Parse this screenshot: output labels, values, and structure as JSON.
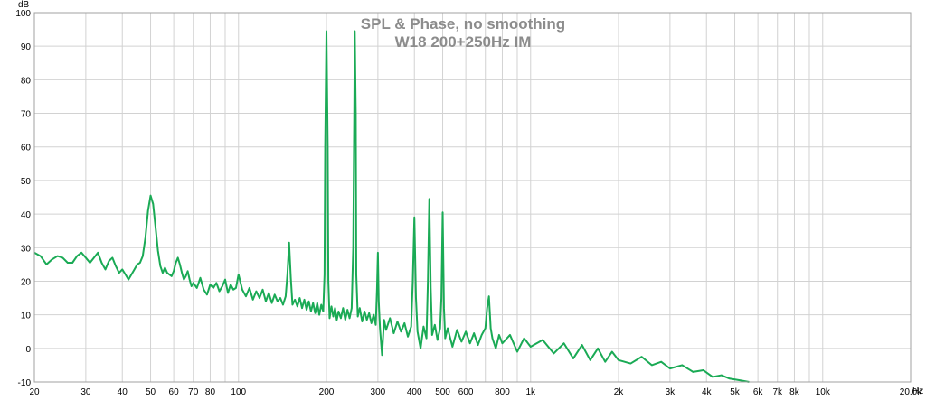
{
  "chart_data": {
    "type": "line",
    "title": "SPL & Phase, no smoothing",
    "subtitle": "W18 200+250Hz IM",
    "ylabel": "dB",
    "xunit": "Hz",
    "xscale": "log",
    "xlim": [
      20,
      20000
    ],
    "ylim": [
      -10,
      100
    ],
    "grid": true,
    "y_ticks": [
      100,
      90,
      80,
      70,
      60,
      50,
      40,
      30,
      20,
      10,
      0,
      -10
    ],
    "x_ticks": [
      {
        "value": 20,
        "label": "20"
      },
      {
        "value": 30,
        "label": "30"
      },
      {
        "value": 40,
        "label": "40"
      },
      {
        "value": 50,
        "label": "50"
      },
      {
        "value": 60,
        "label": "60"
      },
      {
        "value": 70,
        "label": "70"
      },
      {
        "value": 80,
        "label": "80"
      },
      {
        "value": 100,
        "label": "100"
      },
      {
        "value": 200,
        "label": "200"
      },
      {
        "value": 300,
        "label": "300"
      },
      {
        "value": 400,
        "label": "400"
      },
      {
        "value": 500,
        "label": "500"
      },
      {
        "value": 600,
        "label": "600"
      },
      {
        "value": 800,
        "label": "800"
      },
      {
        "value": 1000,
        "label": "1k"
      },
      {
        "value": 2000,
        "label": "2k"
      },
      {
        "value": 3000,
        "label": "3k"
      },
      {
        "value": 4000,
        "label": "4k"
      },
      {
        "value": 5000,
        "label": "5k"
      },
      {
        "value": 6000,
        "label": "6k"
      },
      {
        "value": 7000,
        "label": "7k"
      },
      {
        "value": 8000,
        "label": "8k"
      },
      {
        "value": 10000,
        "label": "10k"
      },
      {
        "value": 20000,
        "label": "20.0k"
      }
    ],
    "series": [
      {
        "color": "#1aaa55",
        "points": [
          [
            20,
            28.5
          ],
          [
            21,
            27.5
          ],
          [
            22,
            25
          ],
          [
            23,
            26.5
          ],
          [
            24,
            27.5
          ],
          [
            25,
            27
          ],
          [
            26,
            25.5
          ],
          [
            27,
            25.5
          ],
          [
            28,
            27.5
          ],
          [
            29,
            28.5
          ],
          [
            30,
            27
          ],
          [
            31,
            25.5
          ],
          [
            32,
            27
          ],
          [
            33,
            28.5
          ],
          [
            34,
            25.5
          ],
          [
            35,
            23.5
          ],
          [
            36,
            26
          ],
          [
            37,
            27
          ],
          [
            38,
            24.5
          ],
          [
            39,
            22.5
          ],
          [
            40,
            23.5
          ],
          [
            41,
            22
          ],
          [
            42,
            20.5
          ],
          [
            43,
            22
          ],
          [
            44,
            23.5
          ],
          [
            45,
            25
          ],
          [
            46,
            25.5
          ],
          [
            47,
            27.5
          ],
          [
            48,
            33
          ],
          [
            49,
            41
          ],
          [
            50,
            45.5
          ],
          [
            51,
            43
          ],
          [
            52,
            36
          ],
          [
            53,
            29
          ],
          [
            54,
            24.5
          ],
          [
            55,
            22.5
          ],
          [
            56,
            24
          ],
          [
            57,
            22.5
          ],
          [
            58,
            22
          ],
          [
            59,
            21.5
          ],
          [
            60,
            23
          ],
          [
            61,
            25.5
          ],
          [
            62,
            27
          ],
          [
            63,
            25
          ],
          [
            64,
            22.5
          ],
          [
            65,
            20.5
          ],
          [
            66,
            21.5
          ],
          [
            67,
            23
          ],
          [
            68,
            20.5
          ],
          [
            69,
            18.5
          ],
          [
            70,
            19.5
          ],
          [
            72,
            18
          ],
          [
            74,
            21
          ],
          [
            76,
            17.5
          ],
          [
            78,
            16
          ],
          [
            80,
            19
          ],
          [
            82,
            18
          ],
          [
            84,
            19.5
          ],
          [
            86,
            17
          ],
          [
            88,
            18.5
          ],
          [
            90,
            20.5
          ],
          [
            92,
            16.5
          ],
          [
            94,
            19
          ],
          [
            96,
            17.5
          ],
          [
            98,
            18
          ],
          [
            100,
            22
          ],
          [
            103,
            17.5
          ],
          [
            106,
            15.5
          ],
          [
            109,
            18
          ],
          [
            112,
            14.5
          ],
          [
            115,
            17
          ],
          [
            118,
            15
          ],
          [
            121,
            17.5
          ],
          [
            124,
            14
          ],
          [
            127,
            16.5
          ],
          [
            130,
            13.5
          ],
          [
            133,
            16
          ],
          [
            136,
            14
          ],
          [
            139,
            15
          ],
          [
            142,
            13
          ],
          [
            145,
            15.5
          ],
          [
            147,
            22
          ],
          [
            149,
            31.5
          ],
          [
            151,
            21
          ],
          [
            153,
            13
          ],
          [
            156,
            14.5
          ],
          [
            159,
            12.5
          ],
          [
            162,
            15
          ],
          [
            165,
            12
          ],
          [
            168,
            14.5
          ],
          [
            171,
            11.5
          ],
          [
            174,
            14
          ],
          [
            177,
            11
          ],
          [
            180,
            13.5
          ],
          [
            183,
            10.5
          ],
          [
            186,
            13.5
          ],
          [
            189,
            10
          ],
          [
            192,
            13
          ],
          [
            195,
            11
          ],
          [
            197,
            22
          ],
          [
            198,
            60
          ],
          [
            200,
            94.5
          ],
          [
            202,
            60
          ],
          [
            203,
            20
          ],
          [
            205,
            9
          ],
          [
            208,
            12.5
          ],
          [
            211,
            9.5
          ],
          [
            214,
            12
          ],
          [
            217,
            8.5
          ],
          [
            220,
            11
          ],
          [
            224,
            9
          ],
          [
            228,
            12
          ],
          [
            232,
            8.5
          ],
          [
            236,
            11.5
          ],
          [
            240,
            9
          ],
          [
            244,
            12
          ],
          [
            247,
            30
          ],
          [
            249,
            70
          ],
          [
            250,
            94.5
          ],
          [
            252,
            70
          ],
          [
            253,
            22
          ],
          [
            256,
            9.5
          ],
          [
            260,
            12
          ],
          [
            265,
            8
          ],
          [
            270,
            11
          ],
          [
            275,
            8.5
          ],
          [
            280,
            10.5
          ],
          [
            285,
            7.5
          ],
          [
            290,
            10
          ],
          [
            295,
            7
          ],
          [
            298,
            18
          ],
          [
            300,
            28.5
          ],
          [
            302,
            14
          ],
          [
            305,
            6
          ],
          [
            310,
            -2
          ],
          [
            315,
            8.5
          ],
          [
            320,
            5.5
          ],
          [
            330,
            9
          ],
          [
            340,
            4.5
          ],
          [
            350,
            8
          ],
          [
            360,
            5
          ],
          [
            370,
            7.5
          ],
          [
            380,
            3.5
          ],
          [
            390,
            6.5
          ],
          [
            395,
            20
          ],
          [
            400,
            39
          ],
          [
            405,
            15
          ],
          [
            410,
            5
          ],
          [
            420,
            0
          ],
          [
            430,
            6.5
          ],
          [
            440,
            3
          ],
          [
            445,
            20
          ],
          [
            450,
            44.5
          ],
          [
            455,
            18
          ],
          [
            460,
            4
          ],
          [
            470,
            7
          ],
          [
            480,
            2.5
          ],
          [
            490,
            6
          ],
          [
            495,
            15
          ],
          [
            500,
            40.5
          ],
          [
            505,
            12
          ],
          [
            510,
            3
          ],
          [
            520,
            6
          ],
          [
            540,
            0.5
          ],
          [
            560,
            5.5
          ],
          [
            580,
            2
          ],
          [
            600,
            5
          ],
          [
            620,
            1.5
          ],
          [
            640,
            4.5
          ],
          [
            660,
            1
          ],
          [
            680,
            4
          ],
          [
            700,
            6
          ],
          [
            710,
            12
          ],
          [
            720,
            15.5
          ],
          [
            730,
            6
          ],
          [
            740,
            3
          ],
          [
            760,
            0
          ],
          [
            780,
            4
          ],
          [
            800,
            1.5
          ],
          [
            850,
            4
          ],
          [
            900,
            -1
          ],
          [
            950,
            3
          ],
          [
            1000,
            0.5
          ],
          [
            1100,
            2.5
          ],
          [
            1200,
            -1.5
          ],
          [
            1300,
            1.5
          ],
          [
            1400,
            -3
          ],
          [
            1500,
            1
          ],
          [
            1600,
            -3.5
          ],
          [
            1700,
            0
          ],
          [
            1800,
            -4
          ],
          [
            1900,
            -1
          ],
          [
            2000,
            -3.5
          ],
          [
            2200,
            -4.5
          ],
          [
            2400,
            -2.5
          ],
          [
            2600,
            -5
          ],
          [
            2800,
            -4
          ],
          [
            3000,
            -6
          ],
          [
            3300,
            -5
          ],
          [
            3600,
            -7
          ],
          [
            3900,
            -6.5
          ],
          [
            4200,
            -8.5
          ],
          [
            4500,
            -8
          ],
          [
            4800,
            -9
          ],
          [
            5200,
            -9.5
          ],
          [
            5600,
            -10
          ]
        ]
      }
    ]
  }
}
